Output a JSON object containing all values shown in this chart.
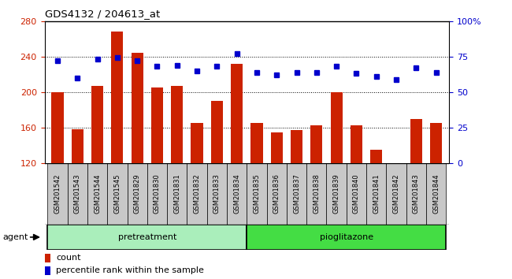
{
  "title": "GDS4132 / 204613_at",
  "samples": [
    "GSM201542",
    "GSM201543",
    "GSM201544",
    "GSM201545",
    "GSM201829",
    "GSM201830",
    "GSM201831",
    "GSM201832",
    "GSM201833",
    "GSM201834",
    "GSM201835",
    "GSM201836",
    "GSM201837",
    "GSM201838",
    "GSM201839",
    "GSM201840",
    "GSM201841",
    "GSM201842",
    "GSM201843",
    "GSM201844"
  ],
  "counts": [
    200,
    158,
    207,
    268,
    244,
    205,
    207,
    165,
    190,
    232,
    165,
    155,
    157,
    163,
    200,
    163,
    135,
    120,
    170,
    165
  ],
  "percentiles": [
    72,
    60,
    73,
    74,
    72,
    68,
    69,
    65,
    68,
    77,
    64,
    62,
    64,
    64,
    68,
    63,
    61,
    59,
    67,
    64
  ],
  "pretreatment_count": 10,
  "pioglitazone_count": 10,
  "bar_color": "#cc2200",
  "dot_color": "#0000cc",
  "ylim_left": [
    120,
    280
  ],
  "ylim_right": [
    0,
    100
  ],
  "yticks_left": [
    120,
    160,
    200,
    240,
    280
  ],
  "yticks_right": [
    0,
    25,
    50,
    75,
    100
  ],
  "ytick_labels_right": [
    "0",
    "25",
    "50",
    "75",
    "100%"
  ],
  "agent_label": "agent",
  "group1_label": "pretreatment",
  "group2_label": "pioglitazone",
  "legend_count": "count",
  "legend_pct": "percentile rank within the sample",
  "bg_xticklabels": "#c8c8c8",
  "bg_group1": "#aaeebb",
  "bg_group2": "#44dd44",
  "left_tick_color": "#cc2200",
  "right_tick_color": "#0000cc",
  "gridline_vals": [
    160,
    200,
    240
  ],
  "top_border_color": "#000000"
}
